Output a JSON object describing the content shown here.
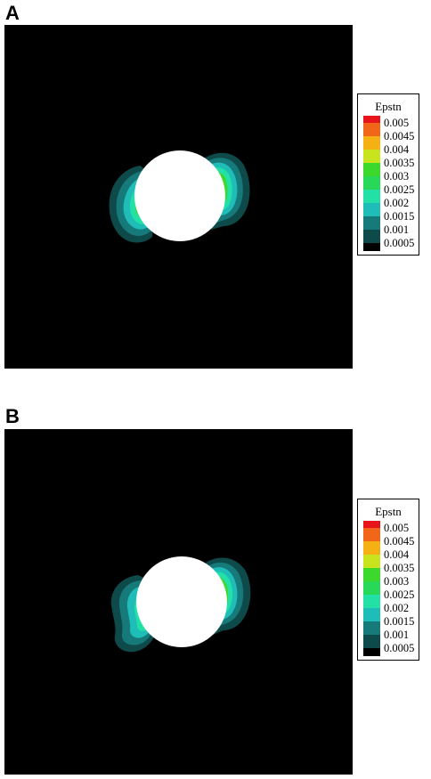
{
  "panels": [
    {
      "label": "A",
      "legend": {
        "title": "Epstn",
        "ticks": [
          "0.005",
          "0.0045",
          "0.004",
          "0.0035",
          "0.003",
          "0.0025",
          "0.002",
          "0.0015",
          "0.001",
          "0.0005"
        ]
      }
    },
    {
      "label": "B",
      "legend": {
        "title": "Epstn",
        "ticks": [
          "0.005",
          "0.0045",
          "0.004",
          "0.0035",
          "0.003",
          "0.0025",
          "0.002",
          "0.0015",
          "0.001",
          "0.0005"
        ]
      }
    }
  ],
  "colors": {
    "background": "#000000",
    "hole": "#ffffff",
    "contour_bands": [
      "#e8141c",
      "#f2661a",
      "#f5b114",
      "#c8e41e",
      "#3cd82c",
      "#28d858",
      "#22e0a6",
      "#1ebdb8",
      "#177a7a",
      "#0e4a4a",
      "#000000"
    ]
  }
}
